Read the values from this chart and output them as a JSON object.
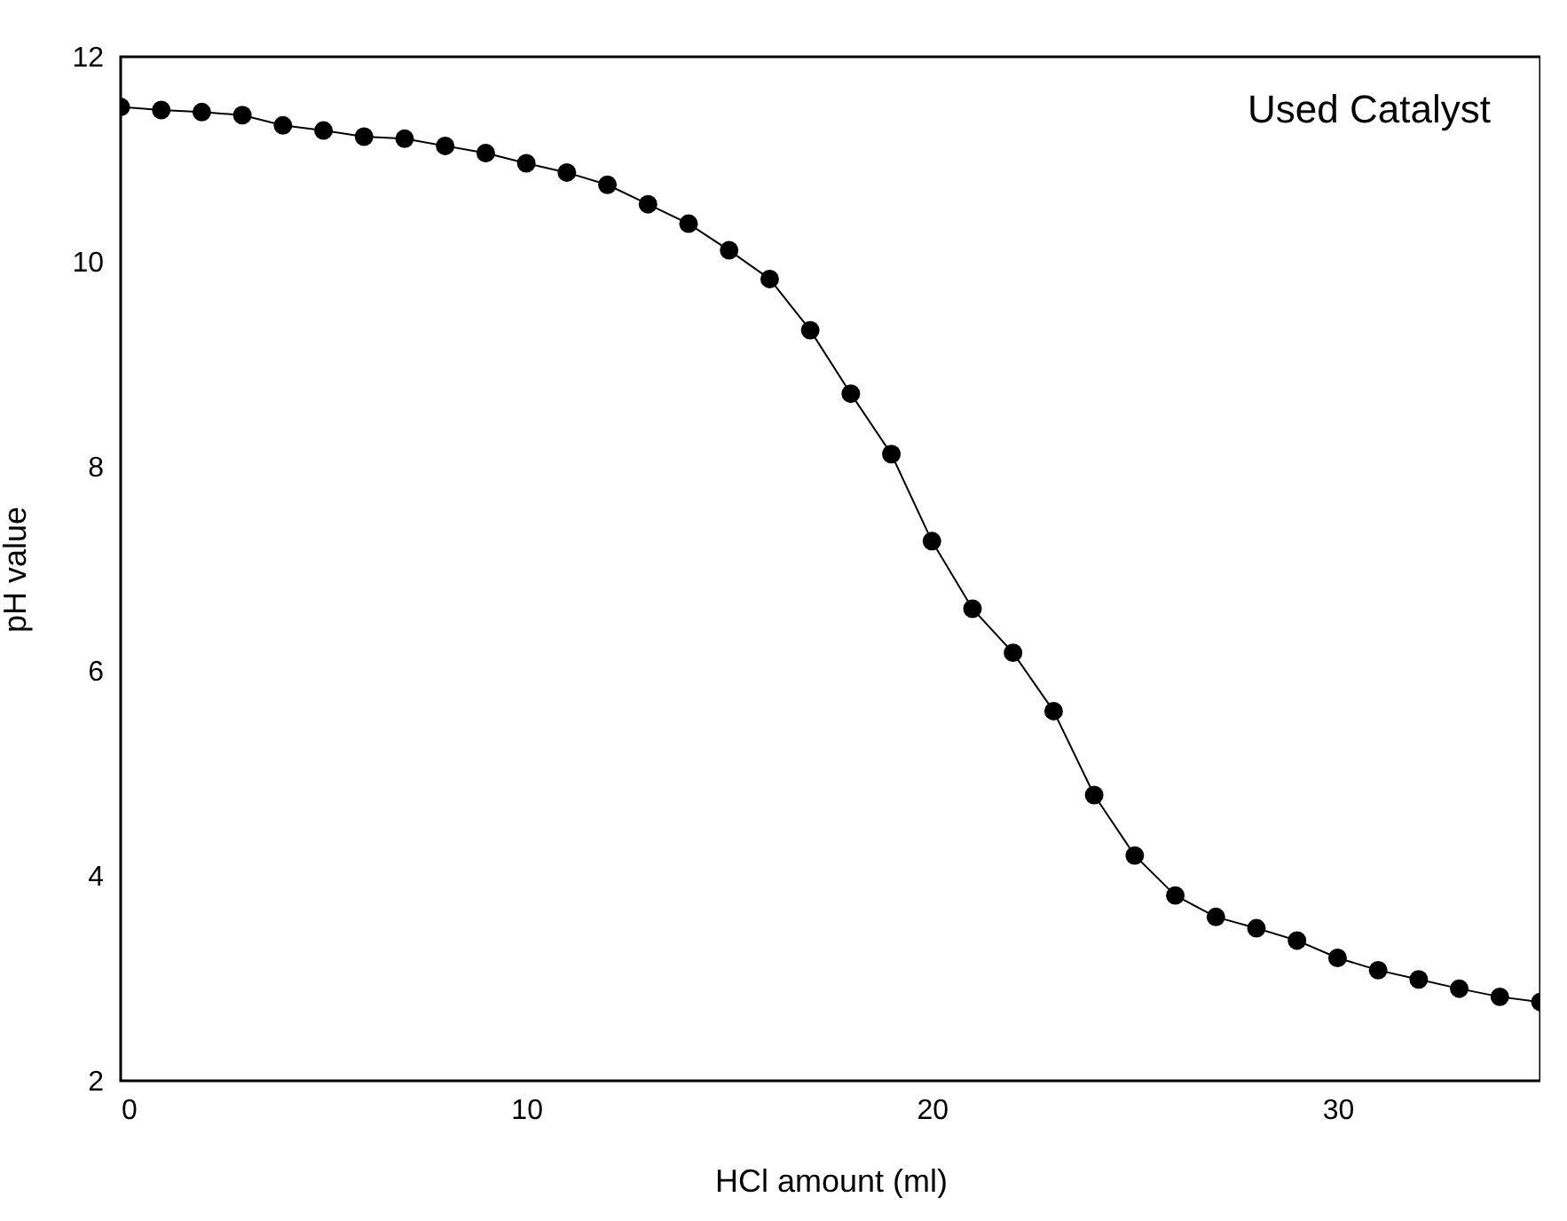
{
  "chart_data": {
    "type": "line",
    "xlabel": "HCl amount (ml)",
    "ylabel": "pH value",
    "annotations": [
      "Used Catalyst"
    ],
    "x": [
      0,
      1,
      2,
      3,
      4,
      5,
      6,
      7,
      8,
      9,
      10,
      11,
      12,
      13,
      14,
      15,
      16,
      17,
      18,
      19,
      20,
      21,
      22,
      23,
      24,
      25,
      26,
      27,
      28,
      29,
      30,
      31,
      32,
      33,
      34,
      35
    ],
    "series": [
      {
        "color": "#000000",
        "values": [
          11.51,
          11.48,
          11.46,
          11.43,
          11.33,
          11.28,
          11.22,
          11.2,
          11.13,
          11.06,
          10.96,
          10.87,
          10.75,
          10.56,
          10.37,
          10.11,
          9.83,
          9.33,
          8.71,
          8.12,
          7.27,
          6.61,
          6.18,
          5.61,
          4.79,
          4.2,
          3.81,
          3.6,
          3.49,
          3.37,
          3.2,
          3.08,
          2.99,
          2.9,
          2.82,
          2.77
        ]
      }
    ],
    "xlim": [
      0,
      35
    ],
    "ylim": [
      2,
      12
    ],
    "xticks": [
      0,
      10,
      20,
      30
    ],
    "yticks": [
      2,
      4,
      6,
      8,
      10,
      12
    ],
    "marker": "circle",
    "line_style": "solid",
    "grid": false,
    "legend": false
  }
}
